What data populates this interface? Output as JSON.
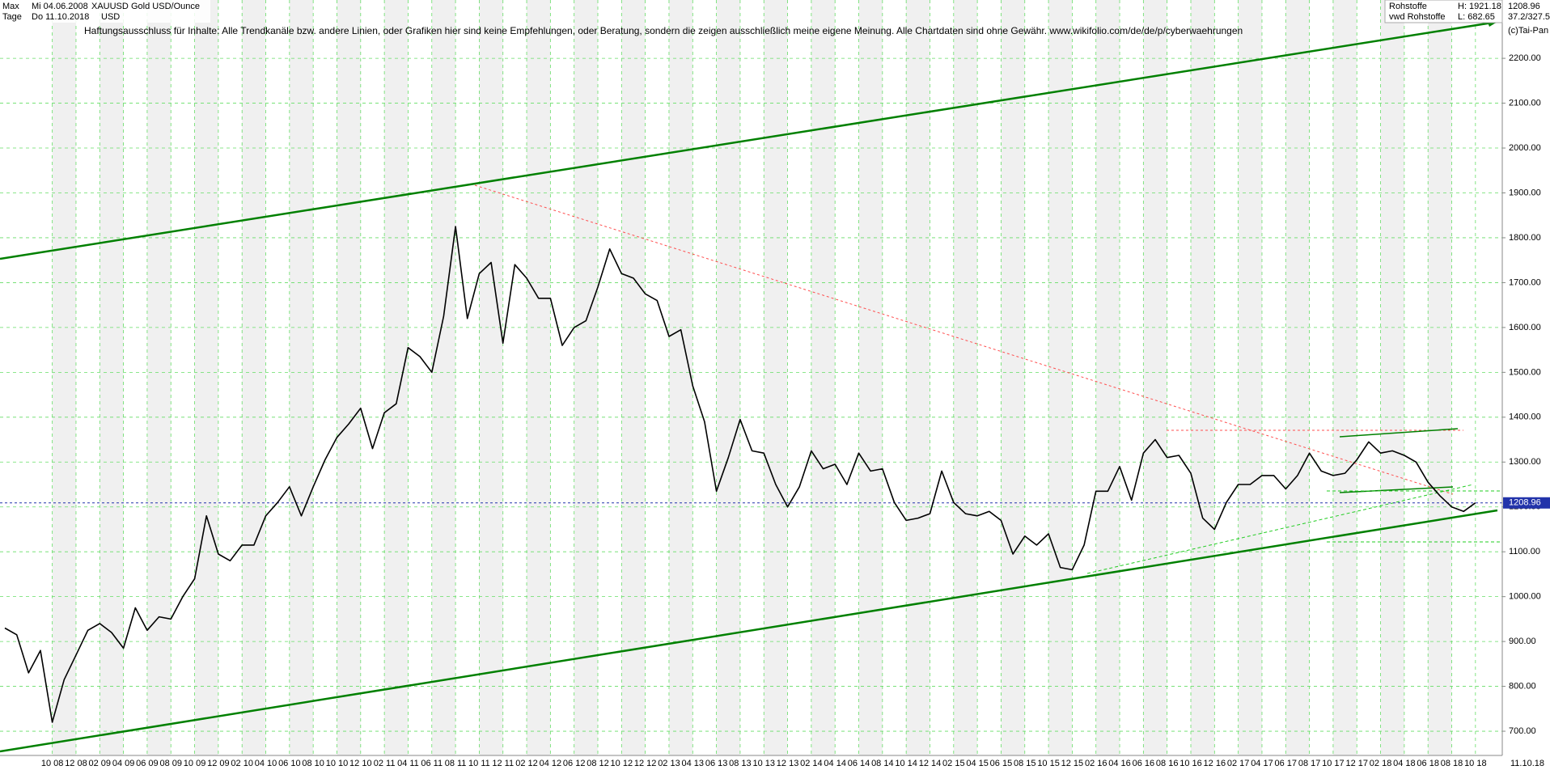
{
  "header": {
    "range": "Max",
    "start": "Mi 04.06.2008",
    "symbol": "XAUUSD",
    "name": "Gold USD/Ounce",
    "period": "Tage",
    "end": "Do 11.10.2018",
    "currency": "USD",
    "disclaimer": "Haftungsausschluss für Inhalte: Alle Trendkanäle bzw. andere Linien, oder Grafiken hier sind keine Empfehlungen, oder Beratung, sondern die zeigen ausschließlich meine eigene Meinung. Alle Chartdaten sind ohne Gewähr.  www.wikifolio.com/de/de/p/cyberwaehrungen",
    "market": "Rohstoffe",
    "high": "H: 1921.18",
    "source": "vwd Rohstoffe",
    "low": "L: 682.65",
    "ratio": "37.2/327.5",
    "copyright": "(c)Tai-Pan",
    "last_date": "11.10.18"
  },
  "chart_data": {
    "type": "line",
    "categories": [
      null,
      null,
      null,
      null,
      "10 08",
      null,
      "12 08",
      null,
      "02 09",
      null,
      "04 09",
      null,
      "06 09",
      null,
      "08 09",
      null,
      "10 09",
      null,
      "12 09",
      null,
      "02 10",
      null,
      "04 10",
      null,
      "06 10",
      null,
      "08 10",
      null,
      "10 10",
      null,
      "12 10",
      null,
      "02 11",
      null,
      "04 11",
      null,
      "06 11",
      null,
      "08 11",
      null,
      "10 11",
      null,
      "12 11",
      null,
      "02 12",
      null,
      "04 12",
      null,
      "06 12",
      null,
      "08 12",
      null,
      "10 12",
      null,
      "12 12",
      null,
      "02 13",
      null,
      "04 13",
      null,
      "06 13",
      null,
      "08 13",
      null,
      "10 13",
      null,
      "12 13",
      null,
      "02 14",
      null,
      "04 14",
      null,
      "06 14",
      null,
      "08 14",
      null,
      "10 14",
      null,
      "12 14",
      null,
      "02 15",
      null,
      "04 15",
      null,
      "06 15",
      null,
      "08 15",
      null,
      "10 15",
      null,
      "12 15",
      null,
      "02 16",
      null,
      "04 16",
      null,
      "06 16",
      null,
      "08 16",
      null,
      "10 16",
      null,
      "12 16",
      null,
      "02 17",
      null,
      "04 17",
      null,
      "06 17",
      null,
      "08 17",
      null,
      "10 17",
      null,
      "12 17",
      null,
      "02 18",
      null,
      "04 18",
      null,
      "06 18",
      null,
      "08 18",
      null,
      "10 18"
    ],
    "series": [
      {
        "color": "#000000",
        "values": [
          930,
          915,
          830,
          880,
          720,
          815,
          870,
          925,
          940,
          920,
          885,
          975,
          925,
          955,
          950,
          1000,
          1040,
          1180,
          1095,
          1080,
          1115,
          1115,
          1180,
          1210,
          1245,
          1180,
          1245,
          1305,
          1355,
          1385,
          1420,
          1330,
          1410,
          1430,
          1555,
          1535,
          1500,
          1625,
          1825,
          1620,
          1720,
          1745,
          1565,
          1740,
          1710,
          1665,
          1665,
          1560,
          1600,
          1615,
          1690,
          1775,
          1720,
          1710,
          1675,
          1660,
          1580,
          1595,
          1470,
          1390,
          1235,
          1310,
          1395,
          1325,
          1320,
          1250,
          1200,
          1245,
          1325,
          1285,
          1295,
          1250,
          1320,
          1280,
          1285,
          1210,
          1170,
          1175,
          1185,
          1280,
          1210,
          1185,
          1180,
          1190,
          1170,
          1095,
          1135,
          1115,
          1140,
          1065,
          1060,
          1115,
          1235,
          1235,
          1290,
          1215,
          1320,
          1350,
          1310,
          1315,
          1275,
          1175,
          1150,
          1210,
          1250,
          1250,
          1270,
          1270,
          1240,
          1270,
          1320,
          1280,
          1270,
          1275,
          1305,
          1345,
          1320,
          1325,
          1315,
          1300,
          1255,
          1225,
          1200,
          1190,
          1209
        ]
      }
    ],
    "last_value": 1208.96,
    "ylim": [
      646,
      2330
    ],
    "yticks": [
      {
        "value": 700,
        "label": "700.00"
      },
      {
        "value": 800,
        "label": "800.00"
      },
      {
        "value": 900,
        "label": "900.00"
      },
      {
        "value": 1000,
        "label": "1000.00"
      },
      {
        "value": 1100,
        "label": "1100.00"
      },
      {
        "value": 1200,
        "label": "1200.00"
      },
      {
        "value": 1300,
        "label": "1300.00"
      },
      {
        "value": 1400,
        "label": "1400.00"
      },
      {
        "value": 1500,
        "label": "1500.00"
      },
      {
        "value": 1600,
        "label": "1600.00"
      },
      {
        "value": 1700,
        "label": "1700.00"
      },
      {
        "value": 1800,
        "label": "1800.00"
      },
      {
        "value": 1900,
        "label": "1900.00"
      },
      {
        "value": 2000,
        "label": "2000.00"
      },
      {
        "value": 2100,
        "label": "2100.00"
      },
      {
        "value": 2200,
        "label": "2200.00"
      }
    ],
    "grid": true
  }
}
